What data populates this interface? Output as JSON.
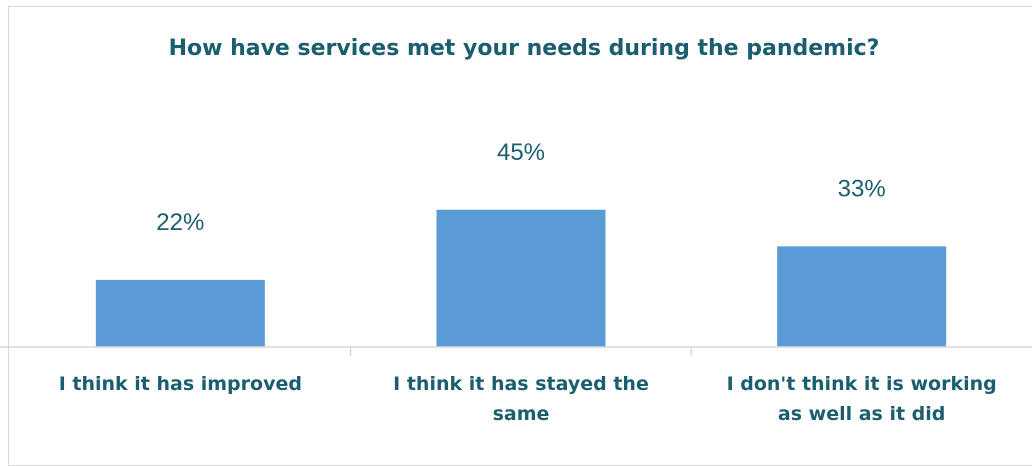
{
  "chart_data": {
    "type": "bar",
    "title": "How have services met your needs during the pandemic?",
    "categories": [
      [
        "I think it has improved"
      ],
      [
        "I think it has stayed the",
        "same"
      ],
      [
        "I don't think it is working",
        "as well as it did"
      ]
    ],
    "values": [
      22,
      45,
      33
    ],
    "value_labels": [
      "22%",
      "45%",
      "33%"
    ],
    "ylim": [
      0,
      100
    ],
    "grid": false,
    "bar_color": "#5b9bd5",
    "text_color": "#1b5e6e",
    "axis_color": "#d9d9d9"
  }
}
